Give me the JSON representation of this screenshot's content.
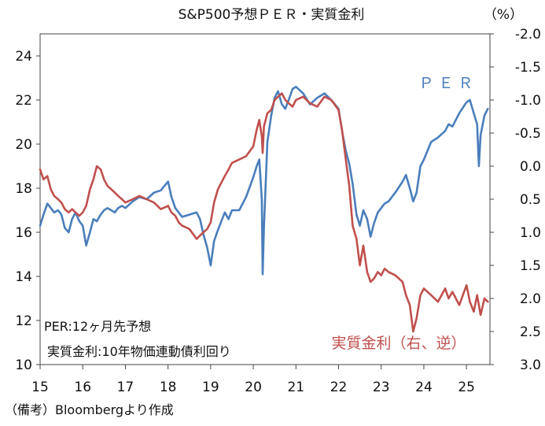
{
  "chart_data": {
    "type": "line",
    "title": "S&P500予想ＰＥＲ・実質金利",
    "unit_right": "（%）",
    "x_ticks": [
      "15",
      "16",
      "17",
      "18",
      "19",
      "20",
      "21",
      "22",
      "23",
      "24",
      "25"
    ],
    "x_range": [
      2015.0,
      2025.55
    ],
    "y_left": {
      "ticks": [
        "24",
        "22",
        "20",
        "18",
        "16",
        "14",
        "12",
        "10"
      ],
      "range": [
        10,
        25
      ]
    },
    "y_right": {
      "ticks": [
        "-2.0",
        "-1.5",
        "-1.0",
        "-0.5",
        "0.0",
        "0.5",
        "1.0",
        "1.5",
        "2.0",
        "2.5",
        "3.0"
      ],
      "range": [
        -2.0,
        3.0
      ],
      "inverted": true
    },
    "notes": [
      "PER:12ヶ月先予想",
      "実質金利:10年物価連動債利回り"
    ],
    "source": "（備考）Bloombergより作成",
    "series": [
      {
        "name": "ＰＥＲ",
        "axis": "left",
        "color": "#4a7ebb",
        "x": [
          2015.0,
          2015.08,
          2015.17,
          2015.25,
          2015.33,
          2015.42,
          2015.5,
          2015.58,
          2015.67,
          2015.75,
          2015.83,
          2015.92,
          2016.0,
          2016.08,
          2016.17,
          2016.25,
          2016.33,
          2016.42,
          2016.5,
          2016.58,
          2016.67,
          2016.75,
          2016.83,
          2016.92,
          2017.0,
          2017.17,
          2017.33,
          2017.5,
          2017.67,
          2017.83,
          2018.0,
          2018.08,
          2018.17,
          2018.25,
          2018.33,
          2018.5,
          2018.67,
          2018.75,
          2018.83,
          2018.92,
          2019.0,
          2019.08,
          2019.17,
          2019.33,
          2019.42,
          2019.5,
          2019.67,
          2019.83,
          2020.0,
          2020.08,
          2020.14,
          2020.2,
          2020.22,
          2020.25,
          2020.33,
          2020.42,
          2020.5,
          2020.58,
          2020.67,
          2020.75,
          2020.83,
          2020.92,
          2021.0,
          2021.17,
          2021.33,
          2021.5,
          2021.67,
          2021.83,
          2022.0,
          2022.08,
          2022.17,
          2022.25,
          2022.33,
          2022.42,
          2022.5,
          2022.58,
          2022.67,
          2022.75,
          2022.83,
          2022.92,
          2023.0,
          2023.08,
          2023.17,
          2023.33,
          2023.5,
          2023.58,
          2023.67,
          2023.75,
          2023.83,
          2023.92,
          2024.0,
          2024.17,
          2024.33,
          2024.5,
          2024.58,
          2024.67,
          2024.83,
          2025.0,
          2025.08,
          2025.17,
          2025.25,
          2025.29,
          2025.33,
          2025.42,
          2025.5
        ],
        "y": [
          16.3,
          16.8,
          17.3,
          17.1,
          16.9,
          17.0,
          16.8,
          16.2,
          16.0,
          16.6,
          16.9,
          16.5,
          16.3,
          15.4,
          16.0,
          16.6,
          16.5,
          16.8,
          17.0,
          17.1,
          17.0,
          16.9,
          17.1,
          17.2,
          17.1,
          17.4,
          17.6,
          17.5,
          17.8,
          17.9,
          18.3,
          17.6,
          17.1,
          16.9,
          16.7,
          16.8,
          16.9,
          16.6,
          15.9,
          15.3,
          14.5,
          15.6,
          16.1,
          16.9,
          16.6,
          17.0,
          17.0,
          17.6,
          18.5,
          19.0,
          19.3,
          17.5,
          14.1,
          16.2,
          20.1,
          21.3,
          22.1,
          22.4,
          21.8,
          21.6,
          22.0,
          22.5,
          22.6,
          22.3,
          21.8,
          22.1,
          22.3,
          22.0,
          21.6,
          20.6,
          19.7,
          19.1,
          18.2,
          16.8,
          16.3,
          17.0,
          16.6,
          15.8,
          16.4,
          16.9,
          17.1,
          17.3,
          17.4,
          17.8,
          18.3,
          18.6,
          18.0,
          17.4,
          17.8,
          19.0,
          19.3,
          20.1,
          20.3,
          20.6,
          20.9,
          20.8,
          21.4,
          21.9,
          22.0,
          21.4,
          20.9,
          19.0,
          20.4,
          21.3,
          21.6
        ]
      },
      {
        "name": "実質金利（右、逆）",
        "axis": "right",
        "color": "#c0504d",
        "x": [
          2015.0,
          2015.08,
          2015.17,
          2015.25,
          2015.33,
          2015.42,
          2015.5,
          2015.58,
          2015.67,
          2015.75,
          2015.83,
          2015.92,
          2016.0,
          2016.08,
          2016.17,
          2016.25,
          2016.33,
          2016.42,
          2016.5,
          2016.58,
          2016.67,
          2016.75,
          2016.83,
          2016.92,
          2017.0,
          2017.17,
          2017.33,
          2017.5,
          2017.67,
          2017.83,
          2018.0,
          2018.08,
          2018.17,
          2018.25,
          2018.33,
          2018.5,
          2018.67,
          2018.75,
          2018.83,
          2018.92,
          2019.0,
          2019.08,
          2019.17,
          2019.33,
          2019.42,
          2019.5,
          2019.67,
          2019.83,
          2020.0,
          2020.08,
          2020.14,
          2020.2,
          2020.22,
          2020.25,
          2020.33,
          2020.42,
          2020.5,
          2020.58,
          2020.67,
          2020.75,
          2020.83,
          2020.92,
          2021.0,
          2021.17,
          2021.33,
          2021.5,
          2021.67,
          2021.83,
          2022.0,
          2022.08,
          2022.17,
          2022.25,
          2022.33,
          2022.42,
          2022.5,
          2022.58,
          2022.67,
          2022.75,
          2022.83,
          2022.92,
          2023.0,
          2023.08,
          2023.17,
          2023.33,
          2023.5,
          2023.58,
          2023.67,
          2023.75,
          2023.83,
          2023.92,
          2024.0,
          2024.17,
          2024.33,
          2024.5,
          2024.58,
          2024.67,
          2024.83,
          2025.0,
          2025.08,
          2025.17,
          2025.25,
          2025.29,
          2025.33,
          2025.42,
          2025.5
        ],
        "y": [
          0.05,
          0.2,
          0.15,
          0.35,
          0.45,
          0.5,
          0.55,
          0.65,
          0.7,
          0.65,
          0.7,
          0.75,
          0.7,
          0.6,
          0.35,
          0.2,
          0.0,
          0.05,
          0.2,
          0.3,
          0.35,
          0.4,
          0.45,
          0.5,
          0.55,
          0.5,
          0.45,
          0.5,
          0.55,
          0.65,
          0.6,
          0.7,
          0.75,
          0.85,
          0.9,
          0.95,
          1.1,
          1.05,
          1.0,
          0.95,
          0.85,
          0.55,
          0.35,
          0.15,
          0.05,
          -0.05,
          -0.1,
          -0.15,
          -0.3,
          -0.55,
          -0.7,
          -0.45,
          -0.2,
          -0.6,
          -0.8,
          -0.85,
          -1.0,
          -1.05,
          -1.1,
          -1.0,
          -0.95,
          -0.9,
          -1.0,
          -1.05,
          -0.95,
          -0.9,
          -1.05,
          -1.0,
          -0.85,
          -0.55,
          -0.1,
          0.3,
          0.9,
          1.1,
          1.5,
          1.2,
          1.6,
          1.75,
          1.7,
          1.6,
          1.65,
          1.55,
          1.6,
          1.65,
          1.75,
          1.95,
          2.1,
          2.5,
          2.3,
          1.95,
          1.85,
          1.95,
          2.05,
          1.85,
          2.0,
          1.9,
          2.1,
          1.8,
          2.05,
          2.2,
          1.95,
          2.1,
          2.25,
          2.0,
          2.05
        ]
      }
    ]
  },
  "legend": {
    "per_label": "ＰＥＲ",
    "real_rate_label": "実質金利（右、逆）"
  }
}
